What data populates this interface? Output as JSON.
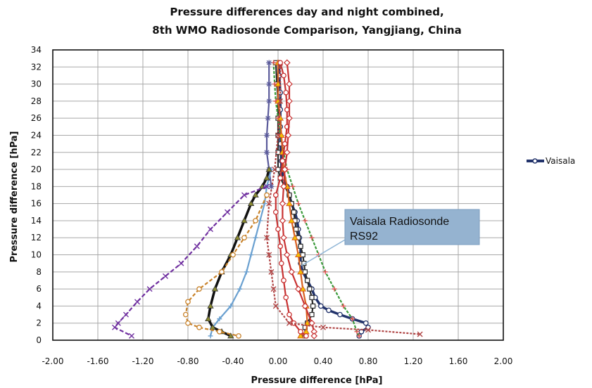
{
  "chart_data": {
    "type": "line",
    "title_line1": "Pressure differences day and night combined,",
    "title_line2": "8th WMO Radiosonde Comparison, Yangjiang, China",
    "xlabel": "Pressure difference  [hPa]",
    "ylabel": "Pressure difference [hPa]",
    "xlim": [
      -2.0,
      2.0
    ],
    "ylim": [
      0,
      34
    ],
    "x_ticks": [
      "-2.00",
      "-1.60",
      "-1.20",
      "-0.80",
      "-0.40",
      "0.00",
      "0.40",
      "0.80",
      "1.20",
      "1.60",
      "2.00"
    ],
    "y_ticks": [
      "0",
      "2",
      "4",
      "6",
      "8",
      "10",
      "12",
      "14",
      "16",
      "18",
      "20",
      "22",
      "24",
      "26",
      "28",
      "30",
      "32",
      "34"
    ],
    "grid": true,
    "legend_position": "right",
    "legend": [
      {
        "name": "Vaisala",
        "color": "#1f2f6b"
      }
    ],
    "annotation": {
      "line1": "Vaisala Radiosonde",
      "line2": "RS92"
    },
    "series": [
      {
        "name": "Vaisala",
        "color": "#22336b",
        "marker": "circle-open",
        "dash": "",
        "points": [
          [
            0.01,
            32.5
          ],
          [
            0.01,
            31
          ],
          [
            0.02,
            29
          ],
          [
            0.02,
            27
          ],
          [
            0.02,
            25
          ],
          [
            0.02,
            23
          ],
          [
            0.03,
            21
          ],
          [
            0.03,
            20
          ],
          [
            0.05,
            19
          ],
          [
            0.08,
            18
          ],
          [
            0.1,
            17
          ],
          [
            0.12,
            16
          ],
          [
            0.15,
            15
          ],
          [
            0.17,
            14
          ],
          [
            0.18,
            13
          ],
          [
            0.19,
            12
          ],
          [
            0.2,
            11
          ],
          [
            0.2,
            10
          ],
          [
            0.2,
            9
          ],
          [
            0.22,
            8
          ],
          [
            0.26,
            7
          ],
          [
            0.3,
            6
          ],
          [
            0.33,
            5
          ],
          [
            0.38,
            4
          ],
          [
            0.45,
            3.5
          ],
          [
            0.55,
            3
          ],
          [
            0.66,
            2.5
          ],
          [
            0.78,
            2
          ],
          [
            0.8,
            1.5
          ],
          [
            0.74,
            1
          ],
          [
            0.72,
            0.5
          ]
        ]
      },
      {
        "name": "",
        "color": "#2a2a2a",
        "marker": "square-open",
        "dash": "",
        "points": [
          [
            -0.02,
            32.5
          ],
          [
            -0.01,
            30
          ],
          [
            0,
            28
          ],
          [
            0,
            26
          ],
          [
            0,
            24
          ],
          [
            0,
            22
          ],
          [
            0,
            20
          ],
          [
            0.02,
            19
          ],
          [
            0.06,
            18
          ],
          [
            0.1,
            17
          ],
          [
            0.12,
            16
          ],
          [
            0.14,
            15
          ],
          [
            0.15,
            14
          ],
          [
            0.16,
            13
          ],
          [
            0.18,
            12
          ],
          [
            0.2,
            11
          ],
          [
            0.22,
            10
          ],
          [
            0.23,
            9
          ],
          [
            0.24,
            8
          ],
          [
            0.26,
            7
          ],
          [
            0.28,
            6
          ],
          [
            0.3,
            5
          ],
          [
            0.31,
            4
          ],
          [
            0.3,
            3
          ],
          [
            0.26,
            2
          ],
          [
            0.24,
            1.5
          ],
          [
            0.24,
            0.5
          ]
        ]
      },
      {
        "name": "",
        "color": "#3a9a3a",
        "marker": "plus",
        "dash": "4,2",
        "points": [
          [
            -0.04,
            32.5
          ],
          [
            -0.03,
            30
          ],
          [
            -0.02,
            28
          ],
          [
            0,
            26
          ],
          [
            0.02,
            24
          ],
          [
            0.05,
            22
          ],
          [
            0.08,
            20
          ],
          [
            0.13,
            18
          ],
          [
            0.18,
            16
          ],
          [
            0.24,
            14
          ],
          [
            0.3,
            12
          ],
          [
            0.36,
            10
          ],
          [
            0.42,
            8
          ],
          [
            0.5,
            6
          ],
          [
            0.58,
            4
          ],
          [
            0.66,
            2.5
          ],
          [
            0.7,
            1
          ],
          [
            0.72,
            0.5
          ]
        ]
      },
      {
        "name": "",
        "color": "#d96020",
        "marker": "triangle",
        "dash": "",
        "points": [
          [
            0,
            32.5
          ],
          [
            0,
            30
          ],
          [
            0,
            28
          ],
          [
            0.02,
            26
          ],
          [
            0.03,
            24
          ],
          [
            0.04,
            22
          ],
          [
            0.05,
            20
          ],
          [
            0.08,
            18
          ],
          [
            0.1,
            16
          ],
          [
            0.12,
            14
          ],
          [
            0.15,
            12
          ],
          [
            0.18,
            10
          ],
          [
            0.2,
            8
          ],
          [
            0.22,
            6
          ],
          [
            0.25,
            4
          ],
          [
            0.26,
            2
          ],
          [
            0.25,
            1
          ],
          [
            0.2,
            0.5
          ]
        ]
      },
      {
        "name": "",
        "color": "#c83232",
        "marker": "circle-open",
        "dash": "",
        "points": [
          [
            0.02,
            32.5
          ],
          [
            0.05,
            31
          ],
          [
            0.07,
            29
          ],
          [
            0.08,
            27
          ],
          [
            0.08,
            25
          ],
          [
            0.06,
            23
          ],
          [
            0.04,
            21
          ],
          [
            0.02,
            19
          ],
          [
            -0.02,
            17
          ],
          [
            -0.02,
            15
          ],
          [
            0,
            13
          ],
          [
            0.02,
            11
          ],
          [
            0.03,
            9
          ],
          [
            0.05,
            7
          ],
          [
            0.07,
            5
          ],
          [
            0.1,
            3
          ],
          [
            0.14,
            2
          ],
          [
            0.2,
            1
          ],
          [
            0.25,
            0.5
          ]
        ]
      },
      {
        "name": "",
        "color": "#c83232",
        "marker": "diamond-open",
        "dash": "",
        "points": [
          [
            0.08,
            32.5
          ],
          [
            0.1,
            30
          ],
          [
            0.1,
            28
          ],
          [
            0.1,
            26
          ],
          [
            0.09,
            24
          ],
          [
            0.08,
            22
          ],
          [
            0.06,
            20
          ],
          [
            0.05,
            18
          ],
          [
            0.04,
            16
          ],
          [
            0.04,
            14
          ],
          [
            0.05,
            12
          ],
          [
            0.08,
            10
          ],
          [
            0.12,
            8
          ],
          [
            0.18,
            6
          ],
          [
            0.24,
            4
          ],
          [
            0.3,
            2
          ],
          [
            0.32,
            1
          ],
          [
            0.32,
            0.5
          ]
        ]
      },
      {
        "name": "",
        "color": "#b04545",
        "marker": "cross",
        "dash": "3,2",
        "points": [
          [
            0.02,
            32
          ],
          [
            0.02,
            28
          ],
          [
            0,
            24
          ],
          [
            -0.03,
            20
          ],
          [
            -0.08,
            16
          ],
          [
            -0.1,
            12
          ],
          [
            -0.08,
            10
          ],
          [
            -0.06,
            8
          ],
          [
            -0.04,
            6
          ],
          [
            -0.02,
            4
          ],
          [
            0.1,
            2
          ],
          [
            0.4,
            1.5
          ],
          [
            0.8,
            1.2
          ],
          [
            1.26,
            0.7
          ]
        ]
      },
      {
        "name": "",
        "color": "#5a5a9a",
        "marker": "star",
        "dash": "",
        "points": [
          [
            -0.08,
            32.5
          ],
          [
            -0.08,
            30
          ],
          [
            -0.08,
            28
          ],
          [
            -0.09,
            26
          ],
          [
            -0.1,
            24
          ],
          [
            -0.1,
            22
          ],
          [
            -0.08,
            20
          ],
          [
            -0.06,
            18
          ]
        ]
      },
      {
        "name": "",
        "color": "#6aa0d0",
        "marker": "plus",
        "dash": "",
        "points": [
          [
            -0.06,
            20
          ],
          [
            -0.1,
            18
          ],
          [
            -0.12,
            16
          ],
          [
            -0.16,
            14
          ],
          [
            -0.2,
            12
          ],
          [
            -0.24,
            10
          ],
          [
            -0.28,
            8
          ],
          [
            -0.34,
            6
          ],
          [
            -0.42,
            4
          ],
          [
            -0.52,
            2.5
          ],
          [
            -0.58,
            1.5
          ],
          [
            -0.6,
            0.5
          ]
        ]
      },
      {
        "name": "",
        "color": "#111111",
        "marker": "triangle-olive",
        "dash": "",
        "points": [
          [
            -0.08,
            20
          ],
          [
            -0.1,
            19
          ],
          [
            -0.14,
            18
          ],
          [
            -0.2,
            17
          ],
          [
            -0.24,
            16
          ],
          [
            -0.3,
            14
          ],
          [
            -0.36,
            12
          ],
          [
            -0.42,
            10
          ],
          [
            -0.5,
            8
          ],
          [
            -0.56,
            6
          ],
          [
            -0.6,
            4
          ],
          [
            -0.62,
            2.5
          ],
          [
            -0.58,
            1.5
          ],
          [
            -0.5,
            1
          ],
          [
            -0.42,
            0.5
          ]
        ]
      },
      {
        "name": "",
        "color": "#c8822a",
        "marker": "circle-open",
        "dash": "5,3",
        "points": [
          [
            -0.1,
            17
          ],
          [
            -0.2,
            14
          ],
          [
            -0.3,
            12
          ],
          [
            -0.4,
            10
          ],
          [
            -0.5,
            8
          ],
          [
            -0.7,
            6
          ],
          [
            -0.8,
            4.5
          ],
          [
            -0.82,
            3
          ],
          [
            -0.8,
            2
          ],
          [
            -0.7,
            1.5
          ],
          [
            -0.52,
            1
          ],
          [
            -0.35,
            0.5
          ]
        ]
      },
      {
        "name": "",
        "color": "#7030a0",
        "marker": "cross",
        "dash": "6,3",
        "points": [
          [
            -0.1,
            18
          ],
          [
            -0.3,
            17
          ],
          [
            -0.45,
            15
          ],
          [
            -0.6,
            13
          ],
          [
            -0.72,
            11
          ],
          [
            -0.86,
            9
          ],
          [
            -1.0,
            7.5
          ],
          [
            -1.14,
            6
          ],
          [
            -1.25,
            4.5
          ],
          [
            -1.35,
            3
          ],
          [
            -1.42,
            2
          ],
          [
            -1.45,
            1.5
          ],
          [
            -1.3,
            0.5
          ]
        ]
      }
    ]
  }
}
